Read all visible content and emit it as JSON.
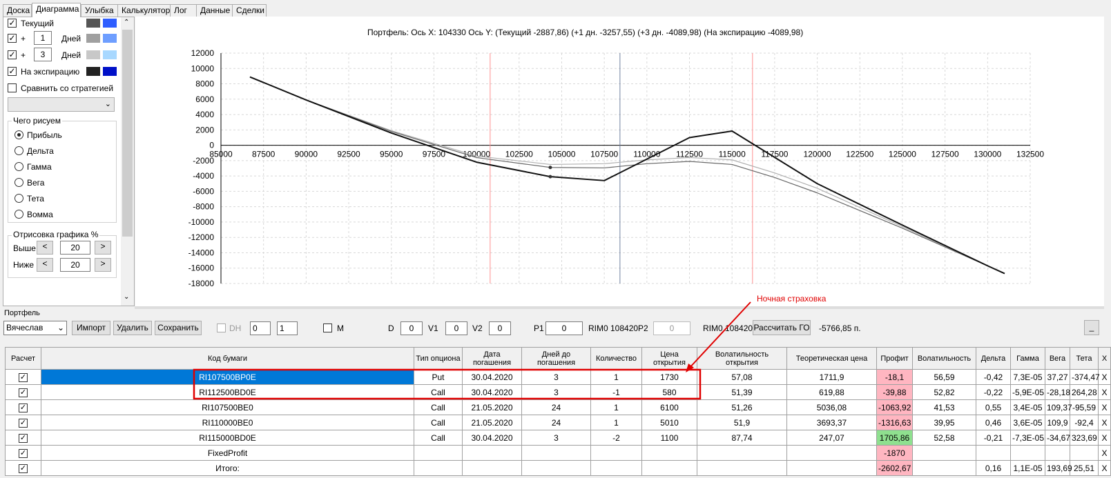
{
  "tabs": [
    "Доска",
    "Диаграмма",
    "Улыбка",
    "Калькулятор",
    "Лог",
    "Данные",
    "Сделки"
  ],
  "active_tab": 1,
  "left": {
    "current_label": "Текущий",
    "plus": "+",
    "days1": "1",
    "days_label": "Дней",
    "days2": "3",
    "expiry_label": "На экспирацию",
    "compare_label": "Сравнить со стратегией",
    "what_title": "Чего рисуем",
    "radios": [
      "Прибыль",
      "Дельта",
      "Гамма",
      "Вега",
      "Тета",
      "Вомма"
    ],
    "draw_title": "Отрисовка графика %",
    "above_label": "Выше",
    "below_label": "Ниже",
    "above": "20",
    "below": "20",
    "lt": "<",
    "gt": ">",
    "colors": {
      "current": [
        "#555555",
        "#2f5eff"
      ],
      "d1": [
        "#a0a0a0",
        "#6e9eff"
      ],
      "d3": [
        "#c8c8c8",
        "#a8d8ff"
      ],
      "exp": [
        "#222222",
        "#0010c8"
      ]
    }
  },
  "chart": {
    "title": "Портфель: Ось X:  104330 Ось Y:   (Текущий -2887,86)  (+1 дн. -3257,55)  (+3 дн. -4089,98)  (На экспирацию -4089,98)",
    "annotation": "Ночная страховка"
  },
  "chart_data": {
    "type": "line",
    "xlim": [
      85000,
      132500
    ],
    "ylim": [
      -18000,
      12000
    ],
    "xticks": [
      "85000",
      "87500",
      "90000",
      "92500",
      "95000",
      "97500",
      "100000",
      "102500",
      "105000",
      "107500",
      "110000",
      "112500",
      "115000",
      "117500",
      "120000",
      "122500",
      "125000",
      "127500",
      "130000",
      "132500"
    ],
    "yticks": [
      "12000",
      "10000",
      "8000",
      "6000",
      "4000",
      "2000",
      "0",
      "-2000",
      "-4000",
      "-6000",
      "-8000",
      "-10000",
      "-12000",
      "-14000",
      "-16000",
      "-18000"
    ],
    "vlines_red": [
      100800,
      116200
    ],
    "vline_current": 108420,
    "series": [
      {
        "color": "#111111",
        "x": [
          86700,
          90000,
          95000,
          100000,
          104330,
          107500,
          112500,
          115000,
          120000,
          125000,
          130000,
          131000
        ],
        "y": [
          8900,
          5900,
          1600,
          -2200,
          -4090,
          -4600,
          1000,
          1850,
          -5000,
          -10400,
          -15700,
          -16700
        ]
      },
      {
        "color": "#666666",
        "x": [
          86700,
          90000,
          95000,
          100000,
          104330,
          107500,
          110000,
          112500,
          115000,
          117500,
          120000,
          125000,
          130000,
          131000
        ],
        "y": [
          8900,
          5900,
          1800,
          -1600,
          -2890,
          -2950,
          -2400,
          -2100,
          -2500,
          -4200,
          -6200,
          -10800,
          -15700,
          -16700
        ]
      },
      {
        "color": "#b0b0b0",
        "x": [
          86700,
          90000,
          95000,
          100000,
          104330,
          107500,
          110000,
          112500,
          115000,
          117500,
          120000,
          125000,
          130000,
          131000
        ],
        "y": [
          8900,
          5900,
          1900,
          -1400,
          -2500,
          -2400,
          -1900,
          -1600,
          -1900,
          -3600,
          -5600,
          -10600,
          -15700,
          -16700
        ]
      }
    ],
    "points": [
      {
        "x": 104330,
        "y": -2890
      },
      {
        "x": 104330,
        "y": -4090
      }
    ]
  },
  "portfolio": {
    "title": "Портфель",
    "account": "Вячеслав",
    "import": "Импорт",
    "delete": "Удалить",
    "save": "Сохранить",
    "dh": "DH",
    "s1": "0",
    "s2": "1",
    "m": "M",
    "d_label": "D",
    "d": "0",
    "v1_label": "V1",
    "v1": "0",
    "v2_label": "V2",
    "v2": "0",
    "p1_label": "P1",
    "p1": "0",
    "rim1": "RIM0 108420",
    "p2_label": "P2",
    "p2": "0",
    "rim2": "RIM0 108420",
    "calc": "Рассчитать ГО",
    "total": "-5766,85 п.",
    "min": "_"
  },
  "table": {
    "headers": [
      "Расчет",
      "Код бумаги",
      "Тип опциона",
      "Дата погашения",
      "Дней до погашения",
      "Количество",
      "Цена открытия",
      "Волатильность открытия",
      "Теоретическая цена",
      "Профит",
      "Волатильность",
      "Дельта",
      "Гамма",
      "Вега",
      "Тета",
      "X"
    ],
    "rows": [
      [
        "✓",
        "RI107500BP0E",
        "Put",
        "30.04.2020",
        "3",
        "1",
        "1730",
        "57,08",
        "1711,9",
        "-18,1",
        "56,59",
        "-0,42",
        "7,3E-05",
        "37,27",
        "-374,47",
        "X"
      ],
      [
        "✓",
        "RI112500BD0E",
        "Call",
        "30.04.2020",
        "3",
        "-1",
        "580",
        "51,39",
        "619,88",
        "-39,88",
        "52,82",
        "-0,22",
        "-5,9E-05",
        "-28,18",
        "264,28",
        "X"
      ],
      [
        "✓",
        "RI107500BE0",
        "Call",
        "21.05.2020",
        "24",
        "1",
        "6100",
        "51,26",
        "5036,08",
        "-1063,92",
        "41,53",
        "0,55",
        "3,4E-05",
        "109,37",
        "-95,59",
        "X"
      ],
      [
        "✓",
        "RI110000BE0",
        "Call",
        "21.05.2020",
        "24",
        "1",
        "5010",
        "51,9",
        "3693,37",
        "-1316,63",
        "39,95",
        "0,46",
        "3,6E-05",
        "109,9",
        "-92,4",
        "X"
      ],
      [
        "✓",
        "RI115000BD0E",
        "Call",
        "30.04.2020",
        "3",
        "-2",
        "1100",
        "87,74",
        "247,07",
        "1705,86",
        "52,58",
        "-0,21",
        "-7,3E-05",
        "-34,67",
        "323,69",
        "X"
      ],
      [
        "✓",
        "FixedProfit",
        "",
        "",
        "",
        "",
        "",
        "",
        "",
        "-1870",
        "",
        "",
        "",
        "",
        "",
        "X"
      ],
      [
        "✓",
        "Итого:",
        "",
        "",
        "",
        "",
        "",
        "",
        "",
        "-2602,67",
        "",
        "0,16",
        "1,1E-05",
        "193,69",
        "25,51",
        "X"
      ]
    ]
  }
}
